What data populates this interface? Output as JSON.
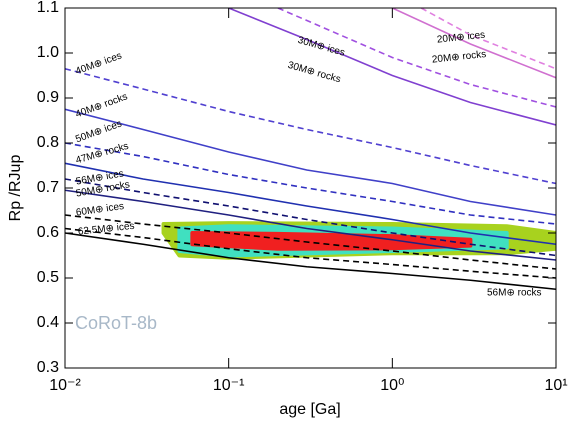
{
  "chart_data": {
    "type": "line",
    "annotation": "CoRoT-8b",
    "x_label": "age [Ga]",
    "y_label": "Rp /RJup",
    "xscale": "log",
    "xlim": [
      0.01,
      10
    ],
    "ylim": [
      0.3,
      1.1
    ],
    "xticks": [
      {
        "value": 0.01,
        "label": "10⁻²"
      },
      {
        "value": 0.1,
        "label": "10⁻¹"
      },
      {
        "value": 1,
        "label": "10⁰"
      },
      {
        "value": 10,
        "label": "10¹"
      }
    ],
    "yticks": [
      0.3,
      0.4,
      0.5,
      0.6,
      0.7,
      0.8,
      0.9,
      {
        "value": 1,
        "label": "1.0"
      },
      1.1
    ],
    "regions": [
      {
        "color": "#a8d21e",
        "x": [
          0.04,
          0.1,
          1,
          5,
          10,
          10,
          5,
          1,
          0.1,
          0.05,
          0.04
        ],
        "y": [
          0.62,
          0.622,
          0.62,
          0.615,
          0.6,
          0.565,
          0.555,
          0.555,
          0.545,
          0.55,
          0.6
        ]
      },
      {
        "color": "#40e0c0",
        "x": [
          0.05,
          0.1,
          1,
          5,
          5,
          1,
          0.1,
          0.05
        ],
        "y": [
          0.61,
          0.615,
          0.61,
          0.6,
          0.568,
          0.56,
          0.55,
          0.56
        ]
      },
      {
        "color": "#f02020",
        "x": [
          0.06,
          0.2,
          1,
          3,
          3,
          1,
          0.2,
          0.06
        ],
        "y": [
          0.6,
          0.598,
          0.593,
          0.585,
          0.572,
          0.566,
          0.565,
          0.575
        ]
      }
    ],
    "series": [
      {
        "name": "20M⊕ ices",
        "color": "#e080e0",
        "dash": true,
        "x": [
          1.5,
          3,
          10
        ],
        "values": [
          1.1,
          1.04,
          0.965
        ]
      },
      {
        "name": "20M⊕ rocks",
        "color": "#d070d0",
        "dash": false,
        "x": [
          1,
          3,
          10
        ],
        "values": [
          1.1,
          1.02,
          0.945
        ]
      },
      {
        "name": "30M⊕ ices",
        "color": "#a050e0",
        "dash": true,
        "x": [
          0.2,
          1,
          3,
          10
        ],
        "values": [
          1.1,
          0.99,
          0.93,
          0.88
        ]
      },
      {
        "name": "30M⊕ rocks",
        "color": "#8040d0",
        "dash": false,
        "x": [
          0.1,
          0.3,
          1,
          3,
          10
        ],
        "values": [
          1.1,
          1.03,
          0.95,
          0.89,
          0.84
        ]
      },
      {
        "name": "40M⊕ ices",
        "color": "#5040d0",
        "dash": true,
        "x": [
          0.01,
          0.03,
          0.1,
          0.3,
          1,
          3,
          10
        ],
        "values": [
          0.965,
          0.92,
          0.87,
          0.83,
          0.79,
          0.75,
          0.71
        ]
      },
      {
        "name": "40M⊕ rocks",
        "color": "#4040c8",
        "dash": false,
        "x": [
          0.01,
          0.03,
          0.1,
          0.3,
          1,
          3,
          10
        ],
        "values": [
          0.875,
          0.83,
          0.78,
          0.74,
          0.71,
          0.67,
          0.64
        ]
      },
      {
        "name": "50M⊕ ices",
        "color": "#3030c0",
        "dash": true,
        "x": [
          0.01,
          0.03,
          0.1,
          0.3,
          1,
          3,
          10
        ],
        "values": [
          0.8,
          0.77,
          0.73,
          0.7,
          0.67,
          0.64,
          0.62
        ]
      },
      {
        "name": "47M⊕ rocks",
        "color": "#2030b0",
        "dash": false,
        "x": [
          0.01,
          0.03,
          0.1,
          0.3,
          1,
          3,
          10
        ],
        "values": [
          0.755,
          0.72,
          0.69,
          0.66,
          0.63,
          0.6,
          0.575
        ]
      },
      {
        "name": "56M⊕ ices",
        "color": "#101070",
        "dash": true,
        "x": [
          0.01,
          0.03,
          0.1,
          0.3,
          1,
          3,
          10
        ],
        "values": [
          0.72,
          0.69,
          0.66,
          0.63,
          0.6,
          0.575,
          0.55
        ]
      },
      {
        "name": "50M⊕ rocks",
        "color": "#202080",
        "dash": false,
        "x": [
          0.01,
          0.03,
          0.1,
          0.3,
          1,
          3,
          10
        ],
        "values": [
          0.695,
          0.67,
          0.64,
          0.61,
          0.585,
          0.56,
          0.54
        ]
      },
      {
        "name": "60M⊕ ices",
        "color": "#000000",
        "dash": true,
        "x": [
          0.01,
          0.03,
          0.1,
          0.3,
          1,
          3,
          10
        ],
        "values": [
          0.64,
          0.62,
          0.6,
          0.58,
          0.56,
          0.54,
          0.52
        ]
      },
      {
        "name": "62.5M⊕ ices",
        "color": "#000000",
        "dash": true,
        "x": [
          0.01,
          0.03,
          0.1,
          0.3,
          1,
          3,
          10
        ],
        "values": [
          0.61,
          0.59,
          0.565,
          0.545,
          0.53,
          0.515,
          0.5
        ]
      },
      {
        "name": "56M⊕ rocks",
        "color": "#000000",
        "dash": false,
        "x": [
          0.01,
          0.03,
          0.1,
          0.3,
          1,
          3,
          10
        ],
        "values": [
          0.6,
          0.575,
          0.545,
          0.525,
          0.51,
          0.495,
          0.475
        ]
      }
    ]
  }
}
